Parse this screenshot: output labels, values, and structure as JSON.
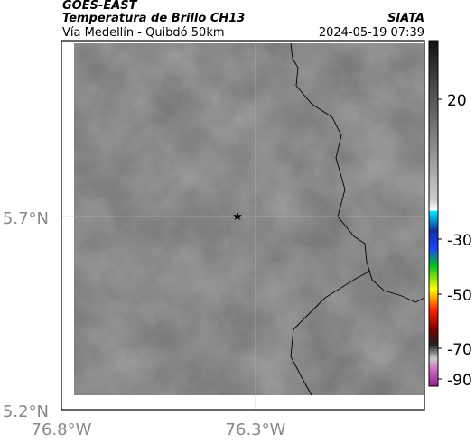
{
  "header": {
    "satellite": "GOES-EAST",
    "product": "Temperatura de Brillo CH13",
    "area": "Vía Medellín - Quibdó 50km",
    "source": "SIATA",
    "timestamp": "2024-05-19 07:39"
  },
  "map": {
    "lat_ticks": [
      "5.7°N",
      "5.2°N"
    ],
    "lon_ticks": [
      "76.8°W",
      "76.3°W"
    ]
  },
  "colorbar": {
    "ticks": [
      20,
      -30,
      -50,
      -70,
      -90
    ]
  }
}
